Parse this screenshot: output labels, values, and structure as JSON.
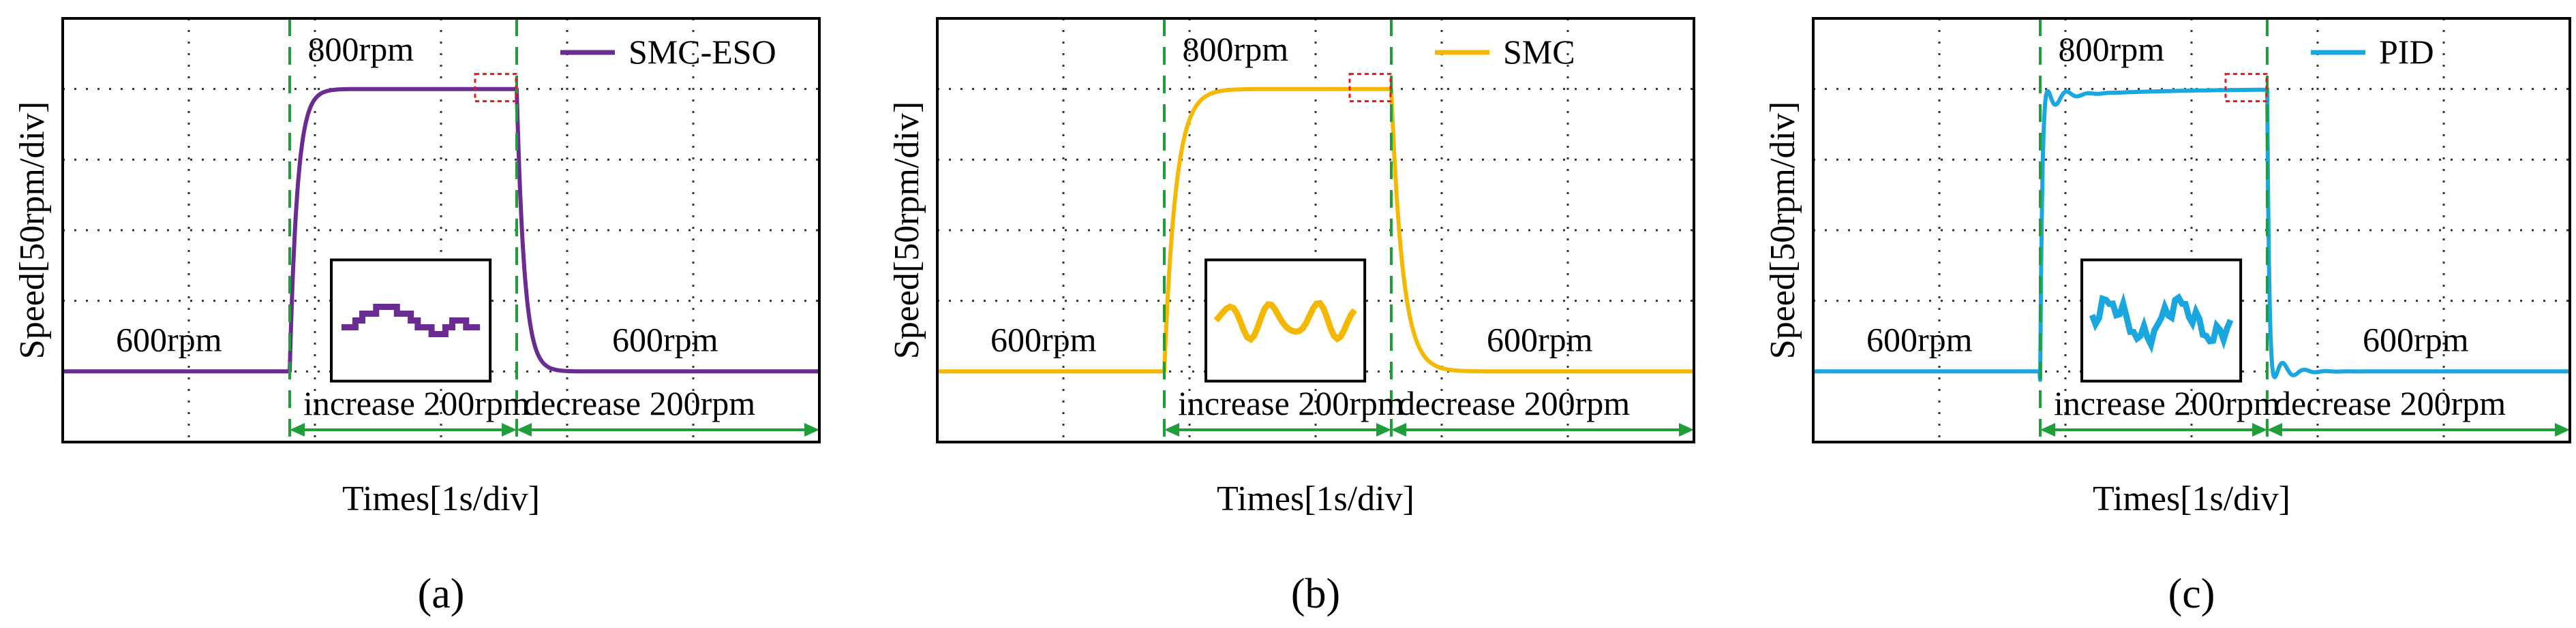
{
  "chart_data": [
    {
      "type": "line",
      "panel_label": "(a)",
      "panel_letter": "a",
      "series": [
        {
          "name": "SMC-ESO",
          "color": "#6a2c91",
          "overshoot_rpm": 0,
          "undershoot_rpm": 0,
          "rise_time_s": 0.3,
          "ripple": "step"
        }
      ],
      "xlabel": "Times[1s/div]",
      "ylabel": "Speed[50rpm/div]",
      "ylim": [
        550,
        850
      ],
      "xlim": [
        0,
        10
      ],
      "step_up_time_s": 3.0,
      "step_down_time_s": 6.0,
      "low_speed_rpm": 600,
      "high_speed_rpm": 800,
      "annotations": {
        "high": "800rpm",
        "low_left": "600rpm",
        "low_right": "600rpm",
        "increase": "increase 200rpm",
        "decrease": "decrease 200rpm"
      }
    },
    {
      "type": "line",
      "panel_label": "(b)",
      "panel_letter": "b",
      "series": [
        {
          "name": "SMC",
          "color": "#f5b800",
          "overshoot_rpm": 0,
          "undershoot_rpm": 0,
          "rise_time_s": 0.45,
          "ripple": "smooth"
        }
      ],
      "xlabel": "Times[1s/div]",
      "ylabel": "Speed[50rpm/div]",
      "ylim": [
        550,
        850
      ],
      "xlim": [
        0,
        10
      ],
      "step_up_time_s": 3.0,
      "step_down_time_s": 6.0,
      "low_speed_rpm": 600,
      "high_speed_rpm": 800,
      "annotations": {
        "high": "800rpm",
        "low_left": "600rpm",
        "low_right": "600rpm",
        "increase": "increase 200rpm",
        "decrease": "decrease 200rpm"
      }
    },
    {
      "type": "line",
      "panel_label": "(c)",
      "panel_letter": "c",
      "series": [
        {
          "name": "PID",
          "color": "#1aa7e0",
          "overshoot_rpm": 10,
          "undershoot_rpm": 10,
          "rise_time_s": 0.08,
          "ripple": "noisy"
        }
      ],
      "xlabel": "Times[1s/div]",
      "ylabel": "Speed[50rpm/div]",
      "ylim": [
        550,
        850
      ],
      "xlim": [
        0,
        10
      ],
      "step_up_time_s": 3.0,
      "step_down_time_s": 6.0,
      "low_speed_rpm": 600,
      "high_speed_rpm": 800,
      "annotations": {
        "high": "800rpm",
        "low_left": "600rpm",
        "low_right": "600rpm",
        "increase": "increase 200rpm",
        "decrease": "decrease 200rpm"
      }
    }
  ],
  "colors": {
    "grid": "#333333",
    "marker_lines": "#1f9e3a",
    "zoom_box": "#e31a1c"
  }
}
